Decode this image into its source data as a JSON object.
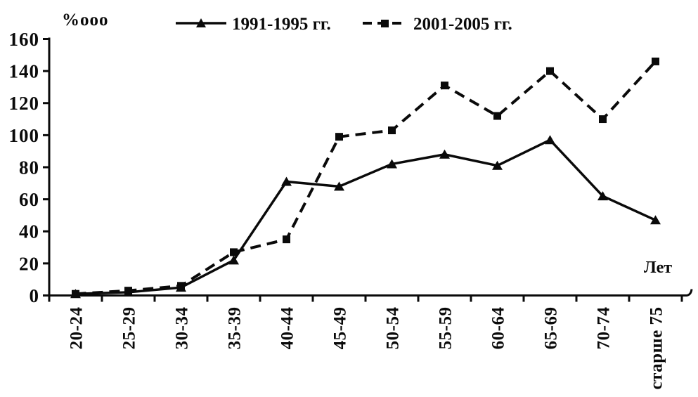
{
  "chart_data": {
    "type": "line",
    "title": "",
    "ylabel": "%ooo",
    "xlabel": "Лет",
    "ylim": [
      0,
      160
    ],
    "yticks": [
      0,
      20,
      40,
      60,
      80,
      100,
      120,
      140,
      160
    ],
    "categories": [
      "20-24",
      "25-29",
      "30-34",
      "35-39",
      "40-44",
      "45-49",
      "50-54",
      "55-59",
      "60-64",
      "65-69",
      "70-74",
      "старше 75"
    ],
    "series": [
      {
        "name": "1991-1995 гг.",
        "line_style": "solid",
        "marker": "triangle",
        "color": "#0a0a0a",
        "values": [
          1,
          2,
          5,
          22,
          71,
          68,
          82,
          88,
          81,
          97,
          62,
          47
        ]
      },
      {
        "name": "2001-2005 гг.",
        "line_style": "dashed",
        "marker": "square",
        "color": "#0a0a0a",
        "values": [
          1,
          3,
          6,
          27,
          35,
          99,
          103,
          131,
          112,
          140,
          110,
          146
        ]
      }
    ],
    "legend_position": "top",
    "grid": false,
    "x_tick_label_rotation_deg": -90,
    "colors": {
      "foreground": "#0a0a0a",
      "background": "#ffffff"
    }
  }
}
